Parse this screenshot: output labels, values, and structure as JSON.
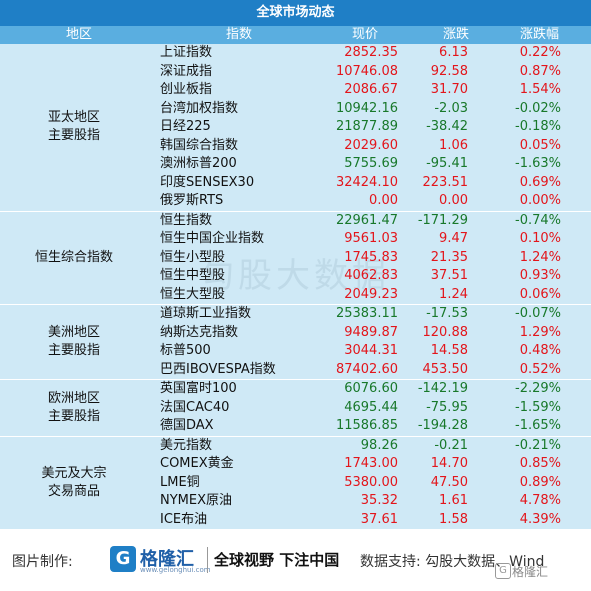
{
  "title": "全球市场动态",
  "headers": {
    "region": "地区",
    "index": "指数",
    "price": "现价",
    "change": "涨跌",
    "pct": "涨跌幅"
  },
  "groups": [
    {
      "label_line1": "亚太地区",
      "label_line2": "主要股指",
      "rows": [
        {
          "name": "上证指数",
          "price": "2852.35",
          "change": "6.13",
          "pct": "0.22%",
          "dir": "up"
        },
        {
          "name": "深证成指",
          "price": "10746.08",
          "change": "92.58",
          "pct": "0.87%",
          "dir": "up"
        },
        {
          "name": "创业板指",
          "price": "2086.67",
          "change": "31.70",
          "pct": "1.54%",
          "dir": "up"
        },
        {
          "name": "台湾加权指数",
          "price": "10942.16",
          "change": "-2.03",
          "pct": "-0.02%",
          "dir": "down"
        },
        {
          "name": "日经225",
          "price": "21877.89",
          "change": "-38.42",
          "pct": "-0.18%",
          "dir": "down"
        },
        {
          "name": "韩国综合指数",
          "price": "2029.60",
          "change": "1.06",
          "pct": "0.05%",
          "dir": "up"
        },
        {
          "name": "澳洲标普200",
          "price": "5755.69",
          "change": "-95.41",
          "pct": "-1.63%",
          "dir": "down"
        },
        {
          "name": "印度SENSEX30",
          "price": "32424.10",
          "change": "223.51",
          "pct": "0.69%",
          "dir": "up"
        },
        {
          "name": "俄罗斯RTS",
          "price": "0.00",
          "change": "0.00",
          "pct": "0.00%",
          "dir": "up"
        }
      ]
    },
    {
      "label_line1": "恒生综合指数",
      "label_line2": "",
      "rows": [
        {
          "name": "恒生指数",
          "price": "22961.47",
          "change": "-171.29",
          "pct": "-0.74%",
          "dir": "down"
        },
        {
          "name": "恒生中国企业指数",
          "price": "9561.03",
          "change": "9.47",
          "pct": "0.10%",
          "dir": "up"
        },
        {
          "name": "恒生小型股",
          "price": "1745.83",
          "change": "21.35",
          "pct": "1.24%",
          "dir": "up"
        },
        {
          "name": "恒生中型股",
          "price": "4062.83",
          "change": "37.51",
          "pct": "0.93%",
          "dir": "up"
        },
        {
          "name": "恒生大型股",
          "price": "2049.23",
          "change": "1.24",
          "pct": "0.06%",
          "dir": "up"
        }
      ]
    },
    {
      "label_line1": "美洲地区",
      "label_line2": "主要股指",
      "rows": [
        {
          "name": "道琼斯工业指数",
          "price": "25383.11",
          "change": "-17.53",
          "pct": "-0.07%",
          "dir": "down"
        },
        {
          "name": "纳斯达克指数",
          "price": "9489.87",
          "change": "120.88",
          "pct": "1.29%",
          "dir": "up"
        },
        {
          "name": "标普500",
          "price": "3044.31",
          "change": "14.58",
          "pct": "0.48%",
          "dir": "up"
        },
        {
          "name": "巴西IBOVESPA指数",
          "price": "87402.60",
          "change": "453.50",
          "pct": "0.52%",
          "dir": "up"
        }
      ]
    },
    {
      "label_line1": "欧洲地区",
      "label_line2": "主要股指",
      "rows": [
        {
          "name": "英国富时100",
          "price": "6076.60",
          "change": "-142.19",
          "pct": "-2.29%",
          "dir": "down"
        },
        {
          "name": "法国CAC40",
          "price": "4695.44",
          "change": "-75.95",
          "pct": "-1.59%",
          "dir": "down"
        },
        {
          "name": "德国DAX",
          "price": "11586.85",
          "change": "-194.28",
          "pct": "-1.65%",
          "dir": "down"
        }
      ]
    },
    {
      "label_line1": "美元及大宗",
      "label_line2": "交易商品",
      "rows": [
        {
          "name": "美元指数",
          "price": "98.26",
          "change": "-0.21",
          "pct": "-0.21%",
          "dir": "down"
        },
        {
          "name": "COMEX黄金",
          "price": "1743.00",
          "change": "14.70",
          "pct": "0.85%",
          "dir": "up"
        },
        {
          "name": "LME铜",
          "price": "5380.00",
          "change": "47.50",
          "pct": "0.89%",
          "dir": "up"
        },
        {
          "name": "NYMEX原油",
          "price": "35.32",
          "change": "1.61",
          "pct": "4.78%",
          "dir": "up"
        },
        {
          "name": "ICE布油",
          "price": "37.61",
          "change": "1.58",
          "pct": "4.39%",
          "dir": "up"
        }
      ]
    }
  ],
  "footer": {
    "made_by": "图片制作:",
    "logo_char": "G",
    "logo_name": "格隆汇",
    "logo_url": "www.gelonghui.com",
    "slogan": "全球视野 下注中国",
    "support": "数据支持: 勾股大数据、Wind",
    "watermark": "格隆汇",
    "bg_watermark": "勾股大数据"
  }
}
